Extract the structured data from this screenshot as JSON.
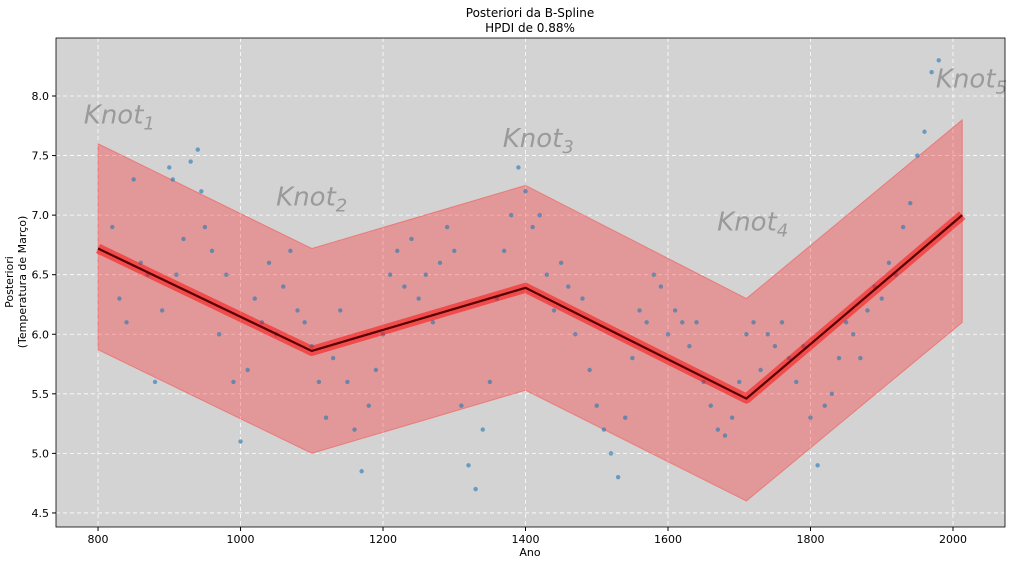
{
  "chart_data": {
    "type": "scatter",
    "title": "Posteriori da B-Spline",
    "subtitle": "HPDI de 0.88%",
    "xlabel": "Ano",
    "ylabel": [
      "Posteriori",
      "(Temperatura de Março)"
    ],
    "xlim": [
      741,
      2073
    ],
    "ylim": [
      4.382,
      8.487
    ],
    "xticks": [
      800,
      1000,
      1200,
      1400,
      1600,
      1800,
      2000
    ],
    "yticks": [
      4.5,
      {
        "value": 5,
        "label": "5.0"
      },
      5.5,
      {
        "value": 6,
        "label": "6.0"
      },
      6.5,
      {
        "value": 7,
        "label": "7.0"
      },
      7.5,
      {
        "value": 8,
        "label": "8.0"
      }
    ],
    "grid": true,
    "background": "#d3d3d3",
    "hpdi": {
      "color": "#ff2a2a",
      "x": [
        800,
        1100,
        1400,
        1710,
        2013
      ],
      "lower": [
        5.87,
        5.0,
        5.53,
        4.6,
        6.1
      ],
      "upper": [
        7.6,
        6.72,
        7.25,
        6.3,
        7.8
      ]
    },
    "mean": {
      "color": "#5a0000",
      "x": [
        800,
        1100,
        1400,
        1710,
        2013
      ],
      "values": [
        6.72,
        5.86,
        6.39,
        5.46,
        7.0
      ]
    },
    "series": [
      {
        "color": "#1f77b4",
        "x": [
          820,
          830,
          840,
          850,
          860,
          870,
          880,
          890,
          900,
          905,
          910,
          920,
          930,
          940,
          945,
          950,
          960,
          970,
          980,
          990,
          1000,
          1010,
          1020,
          1030,
          1040,
          1050,
          1060,
          1070,
          1080,
          1090,
          1100,
          1110,
          1120,
          1130,
          1140,
          1150,
          1160,
          1170,
          1180,
          1190,
          1200,
          1210,
          1220,
          1230,
          1240,
          1250,
          1260,
          1270,
          1280,
          1290,
          1300,
          1310,
          1320,
          1330,
          1340,
          1350,
          1360,
          1370,
          1380,
          1390,
          1400,
          1410,
          1420,
          1430,
          1440,
          1450,
          1460,
          1470,
          1480,
          1490,
          1500,
          1510,
          1520,
          1530,
          1540,
          1550,
          1560,
          1570,
          1580,
          1590,
          1600,
          1610,
          1620,
          1630,
          1640,
          1650,
          1660,
          1670,
          1680,
          1690,
          1700,
          1710,
          1720,
          1730,
          1740,
          1750,
          1760,
          1770,
          1780,
          1790,
          1800,
          1810,
          1820,
          1830,
          1840,
          1850,
          1860,
          1870,
          1880,
          1890,
          1900,
          1910,
          1920,
          1930,
          1940,
          1950,
          1960,
          1970,
          1980
        ],
        "values": [
          6.9,
          6.3,
          6.1,
          7.3,
          6.6,
          6.5,
          5.6,
          6.2,
          7.4,
          7.3,
          6.5,
          6.8,
          7.45,
          7.55,
          7.2,
          6.9,
          6.7,
          6.0,
          6.5,
          5.6,
          5.1,
          5.7,
          6.3,
          6.1,
          6.6,
          6.0,
          6.4,
          6.7,
          6.2,
          6.1,
          5.9,
          5.6,
          5.3,
          5.8,
          6.2,
          5.6,
          5.2,
          4.85,
          5.4,
          5.7,
          6.0,
          6.5,
          6.7,
          6.4,
          6.8,
          6.3,
          6.5,
          6.1,
          6.6,
          6.9,
          6.7,
          5.4,
          4.9,
          4.7,
          5.2,
          5.6,
          6.3,
          6.7,
          7.0,
          7.4,
          7.2,
          6.9,
          7.0,
          6.5,
          6.2,
          6.6,
          6.4,
          6.0,
          6.3,
          5.7,
          5.4,
          5.2,
          5.0,
          4.8,
          5.3,
          5.8,
          6.2,
          6.1,
          6.5,
          6.4,
          6.0,
          6.2,
          6.1,
          5.9,
          6.1,
          5.6,
          5.4,
          5.2,
          5.15,
          5.3,
          5.6,
          6.0,
          6.1,
          5.7,
          6.0,
          5.9,
          6.1,
          5.8,
          5.6,
          5.9,
          5.3,
          4.9,
          5.4,
          5.5,
          5.8,
          6.1,
          6.0,
          5.8,
          6.2,
          6.4,
          6.3,
          6.6,
          6.5,
          6.9,
          7.1,
          7.5,
          7.7,
          8.2,
          8.3
        ]
      }
    ],
    "annotations": [
      {
        "text": "Knot",
        "sub": "1",
        "x": 780,
        "y": 7.77
      },
      {
        "text": "Knot",
        "sub": "2",
        "x": 1050,
        "y": 7.08
      },
      {
        "text": "Knot",
        "sub": "3",
        "x": 1368,
        "y": 7.57
      },
      {
        "text": "Knot",
        "sub": "4",
        "x": 1669,
        "y": 6.87
      },
      {
        "text": "Knot",
        "sub": "5",
        "x": 1976,
        "y": 8.07
      }
    ]
  }
}
